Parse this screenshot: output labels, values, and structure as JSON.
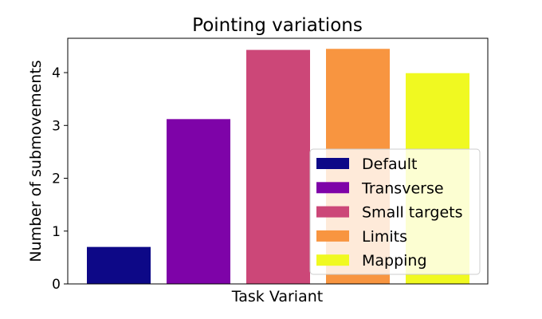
{
  "chart_data": {
    "type": "bar",
    "title": "Pointing variations",
    "xlabel": "Task Variant",
    "ylabel": "Number of submovements",
    "ylim": [
      0,
      4.65
    ],
    "yticks": [
      "0",
      "1",
      "2",
      "3",
      "4"
    ],
    "grid": false,
    "legend_position": "lower-right",
    "series": [
      {
        "name": "Default",
        "value": 0.7,
        "color": "#0d0887"
      },
      {
        "name": "Transverse",
        "value": 3.12,
        "color": "#7e03a8"
      },
      {
        "name": "Small targets",
        "value": 4.43,
        "color": "#cc4778"
      },
      {
        "name": "Limits",
        "value": 4.45,
        "color": "#f89540"
      },
      {
        "name": "Mapping",
        "value": 3.99,
        "color": "#f0f921"
      }
    ]
  }
}
